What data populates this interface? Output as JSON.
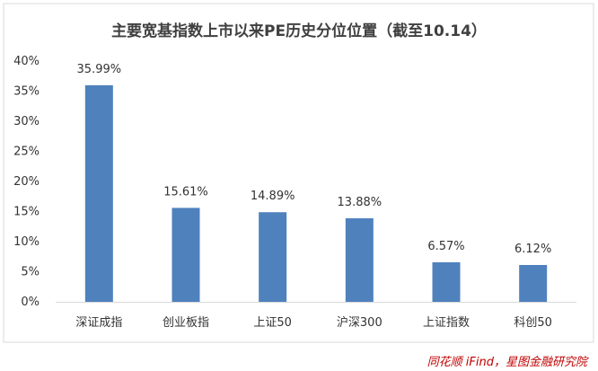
{
  "chart_data": {
    "type": "bar",
    "title": "主要宽基指数上市以来PE历史分位位置（截至10.14）",
    "categories": [
      "深证成指",
      "创业板指",
      "上证50",
      "沪深300",
      "上证指数",
      "科创50"
    ],
    "values": [
      35.99,
      15.61,
      14.89,
      13.88,
      6.57,
      6.12
    ],
    "data_labels": [
      "35.99%",
      "15.61%",
      "14.89%",
      "13.88%",
      "6.57%",
      "6.12%"
    ],
    "ylim": [
      0,
      40
    ],
    "yticks": [
      "0%",
      "5%",
      "10%",
      "15%",
      "20%",
      "25%",
      "30%",
      "35%",
      "40%"
    ],
    "xlabel": "",
    "ylabel": "",
    "grid": false,
    "legend": "none",
    "bar_color": "#4f81bd"
  },
  "source": "同花顺 iFind，星图金融研究院"
}
